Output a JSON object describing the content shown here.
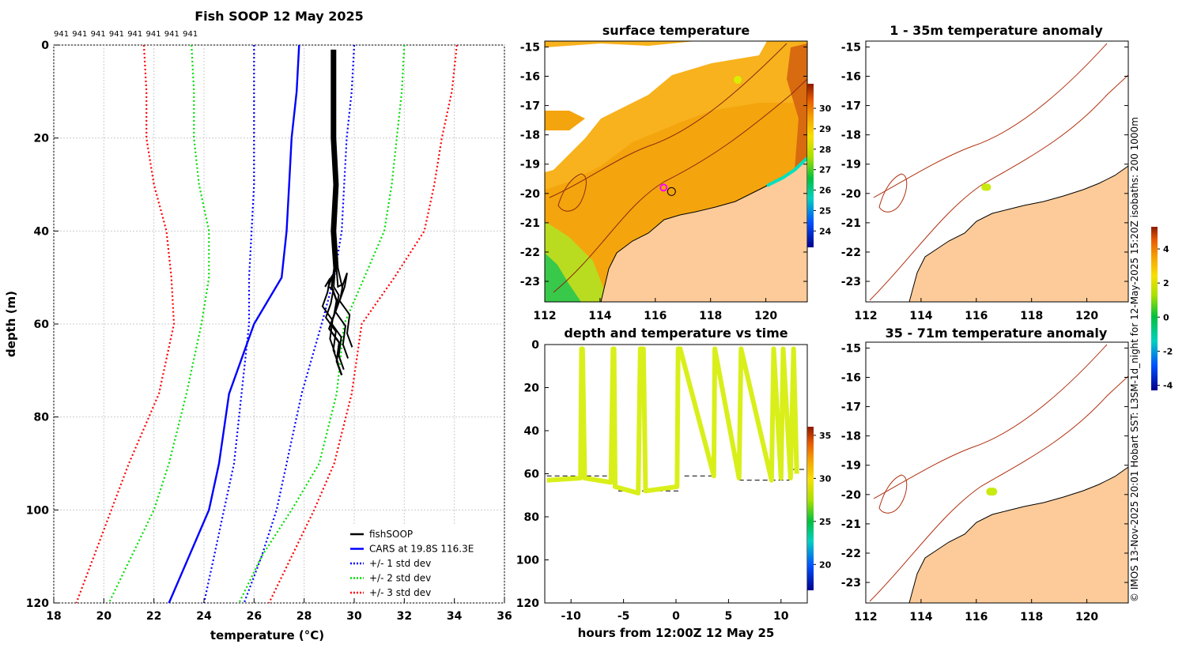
{
  "chart_data": [
    {
      "id": "profile",
      "type": "line",
      "title": "Fish SOOP 12 May 2025",
      "xlabel": "temperature",
      "xlabel_unit": "(°C)",
      "ylabel": "depth (m)",
      "xlim": [
        18,
        36
      ],
      "ylim": [
        120,
        0
      ],
      "xticks": [
        "18",
        "20",
        "22",
        "24",
        "26",
        "28",
        "30",
        "32",
        "34",
        "36"
      ],
      "yticks": [
        "0",
        "20",
        "40",
        "60",
        "80",
        "100",
        "120"
      ],
      "top_labels": [
        "941",
        "941",
        "941",
        "941",
        "941",
        "941",
        "941",
        "941"
      ],
      "grid": true,
      "legend_position": "bottom-right",
      "legend": [
        {
          "label": "fishSOOP",
          "color": "#000000",
          "style": "solid"
        },
        {
          "label": "CARS at 19.8S 116.3E",
          "color": "#0000ff",
          "style": "solid"
        },
        {
          "label": "+/- 1 std dev",
          "color": "#0000ff",
          "style": "dotted"
        },
        {
          "label": "+/- 2 std dev",
          "color": "#00dd00",
          "style": "dotted"
        },
        {
          "label": "+/- 3 std dev",
          "color": "#ff0000",
          "style": "dotted"
        }
      ],
      "series": [
        {
          "name": "CARS mean",
          "color": "#0000ff",
          "style": "solid",
          "temps": [
            27.8,
            27.7,
            27.5,
            27.4,
            27.3,
            27.1,
            26.0,
            25.0,
            24.6,
            24.2,
            23.4,
            22.6
          ],
          "depths": [
            0,
            10,
            20,
            30,
            40,
            50,
            60,
            75,
            90,
            100,
            110,
            120
          ]
        },
        {
          "name": "-1 sd",
          "color": "#0000ff",
          "style": "dotted",
          "temps": [
            26.0,
            26.0,
            26.0,
            26.0,
            25.9,
            25.8,
            25.8,
            25.5,
            25.2,
            24.8,
            24.4,
            24.0
          ],
          "depths": [
            0,
            10,
            20,
            30,
            40,
            50,
            60,
            75,
            90,
            100,
            110,
            120
          ]
        },
        {
          "name": "+1 sd",
          "color": "#0000ff",
          "style": "dotted",
          "temps": [
            30.0,
            29.9,
            29.7,
            29.6,
            29.5,
            29.2,
            28.7,
            27.9,
            27.3,
            26.9,
            26.3,
            25.6
          ],
          "depths": [
            0,
            10,
            20,
            30,
            40,
            50,
            60,
            75,
            90,
            100,
            110,
            120
          ]
        },
        {
          "name": "-2 sd",
          "color": "#00dd00",
          "style": "dotted",
          "temps": [
            23.5,
            23.6,
            23.6,
            23.8,
            24.2,
            24.2,
            23.9,
            23.3,
            22.6,
            22.0,
            21.1,
            20.2
          ],
          "depths": [
            0,
            10,
            20,
            30,
            40,
            50,
            60,
            75,
            90,
            100,
            110,
            120
          ]
        },
        {
          "name": "+2 sd",
          "color": "#00dd00",
          "style": "dotted",
          "temps": [
            32.0,
            31.9,
            31.7,
            31.5,
            31.2,
            30.4,
            29.6,
            29.3,
            28.6,
            27.5,
            26.3,
            25.4
          ],
          "depths": [
            0,
            10,
            20,
            30,
            40,
            50,
            60,
            75,
            90,
            100,
            110,
            120
          ]
        },
        {
          "name": "-3 sd",
          "color": "#ff0000",
          "style": "dotted",
          "temps": [
            21.6,
            21.7,
            21.7,
            22.0,
            22.5,
            22.7,
            22.8,
            22.2,
            21.0,
            20.3,
            19.6,
            18.9
          ],
          "depths": [
            0,
            10,
            20,
            30,
            40,
            50,
            60,
            75,
            90,
            100,
            110,
            120
          ]
        },
        {
          "name": "+3 sd",
          "color": "#ff0000",
          "style": "dotted",
          "temps": [
            34.1,
            33.9,
            33.5,
            33.2,
            32.8,
            31.6,
            30.3,
            29.9,
            29.2,
            28.4,
            27.5,
            26.6
          ],
          "depths": [
            0,
            10,
            20,
            30,
            40,
            50,
            60,
            75,
            90,
            100,
            110,
            120
          ]
        },
        {
          "name": "fishSOOP",
          "color": "#000000",
          "style": "solid",
          "temps": [
            29.1,
            29.1,
            29.1,
            29.2,
            29.1,
            29.2,
            29.1,
            29.3,
            29.2,
            29.0,
            29.4,
            29.3,
            29.5
          ],
          "depths": [
            1,
            10,
            20,
            30,
            40,
            48,
            52,
            55,
            58,
            61,
            64,
            68,
            71
          ]
        }
      ]
    },
    {
      "id": "sst",
      "type": "heatmap",
      "title": "surface temperature",
      "xlim": [
        112,
        121.5
      ],
      "ylim": [
        -23.7,
        -14.8
      ],
      "xticks": [
        "112",
        "114",
        "116",
        "118",
        "120"
      ],
      "yticks": [
        "-15",
        "-16",
        "-17",
        "-18",
        "-19",
        "-20",
        "-21",
        "-22",
        "-23"
      ],
      "colorbar": {
        "range": [
          23.2,
          31.2
        ],
        "ticks": [
          "24",
          "25",
          "26",
          "27",
          "28",
          "29",
          "30"
        ]
      },
      "ship_position": {
        "lon": 116.3,
        "lat": -19.8
      },
      "colors": {
        "land": "#fccb99",
        "warm": "#f4a40d",
        "cloud": "#ffffff"
      }
    },
    {
      "id": "timeseries",
      "type": "scatter",
      "title": "depth and temperature vs time",
      "xlabel": "hours from 12:00Z 12 May 25",
      "xlim": [
        -12.5,
        12.5
      ],
      "ylim": [
        120,
        0
      ],
      "xticks": [
        "-10",
        "-5",
        "0",
        "5",
        "10"
      ],
      "yticks": [
        "0",
        "20",
        "40",
        "60",
        "80",
        "100",
        "120"
      ],
      "colorbar": {
        "range": [
          17,
          36
        ],
        "ticks": [
          "20",
          "25",
          "30",
          "35"
        ]
      },
      "hours": [
        -12.3,
        -9.1,
        -9.0,
        -8.9,
        -8.7,
        -6.2,
        -6.0,
        -5.9,
        -5.8,
        -3.6,
        -3.4,
        -3.1,
        -2.9,
        0.1,
        0.2,
        0.4,
        3.6,
        3.7,
        6.0,
        6.2,
        9.1,
        9.3,
        10.0,
        10.2,
        10.9,
        11.2,
        11.5
      ],
      "depths": [
        63,
        62,
        2,
        2,
        62,
        64,
        2,
        2,
        66,
        69,
        2,
        2,
        68,
        66,
        2,
        2,
        61,
        2,
        62,
        2,
        63,
        2,
        62,
        2,
        62,
        2,
        60
      ],
      "dash_levels": [
        {
          "from": -12.3,
          "to": -6.0,
          "depth": 61
        },
        {
          "from": -5.5,
          "to": 0.4,
          "depth": 68
        },
        {
          "from": 0.8,
          "to": 3.5,
          "depth": 61
        },
        {
          "from": 6.0,
          "to": 10.8,
          "depth": 63
        },
        {
          "from": 11.0,
          "to": 12.5,
          "depth": 58
        }
      ]
    },
    {
      "id": "anom1",
      "type": "heatmap",
      "title": "1 - 35m temperature anomaly",
      "xlim": [
        112,
        121.5
      ],
      "ylim": [
        -23.7,
        -14.8
      ],
      "xticks": [
        "112",
        "114",
        "116",
        "118",
        "120"
      ],
      "yticks": [
        "-15",
        "-16",
        "-17",
        "-18",
        "-19",
        "-20",
        "-21",
        "-22",
        "-23"
      ],
      "colorbar": {
        "range": [
          -4.3,
          5.3
        ],
        "ticks": [
          "-4",
          "-2",
          "0",
          "2",
          "4"
        ]
      },
      "anomaly_points": [
        {
          "lon": 116.3,
          "lat": -19.8,
          "value": 1.6
        }
      ]
    },
    {
      "id": "anom2",
      "type": "heatmap",
      "title": "35 - 71m temperature anomaly",
      "xlim": [
        112,
        121.5
      ],
      "ylim": [
        -23.7,
        -14.8
      ],
      "xticks": [
        "112",
        "114",
        "116",
        "118",
        "120"
      ],
      "yticks": [
        "-15",
        "-16",
        "-17",
        "-18",
        "-19",
        "-20",
        "-21",
        "-22",
        "-23"
      ],
      "anomaly_points": [
        {
          "lon": 116.5,
          "lat": -19.9,
          "value": 2.2
        }
      ]
    }
  ],
  "credit": "© IMOS 13-Nov-2025 20:01 Hobart SST: L3SM-1d_night for 12-May-2025 15:20Z isobaths: 200  1000m"
}
